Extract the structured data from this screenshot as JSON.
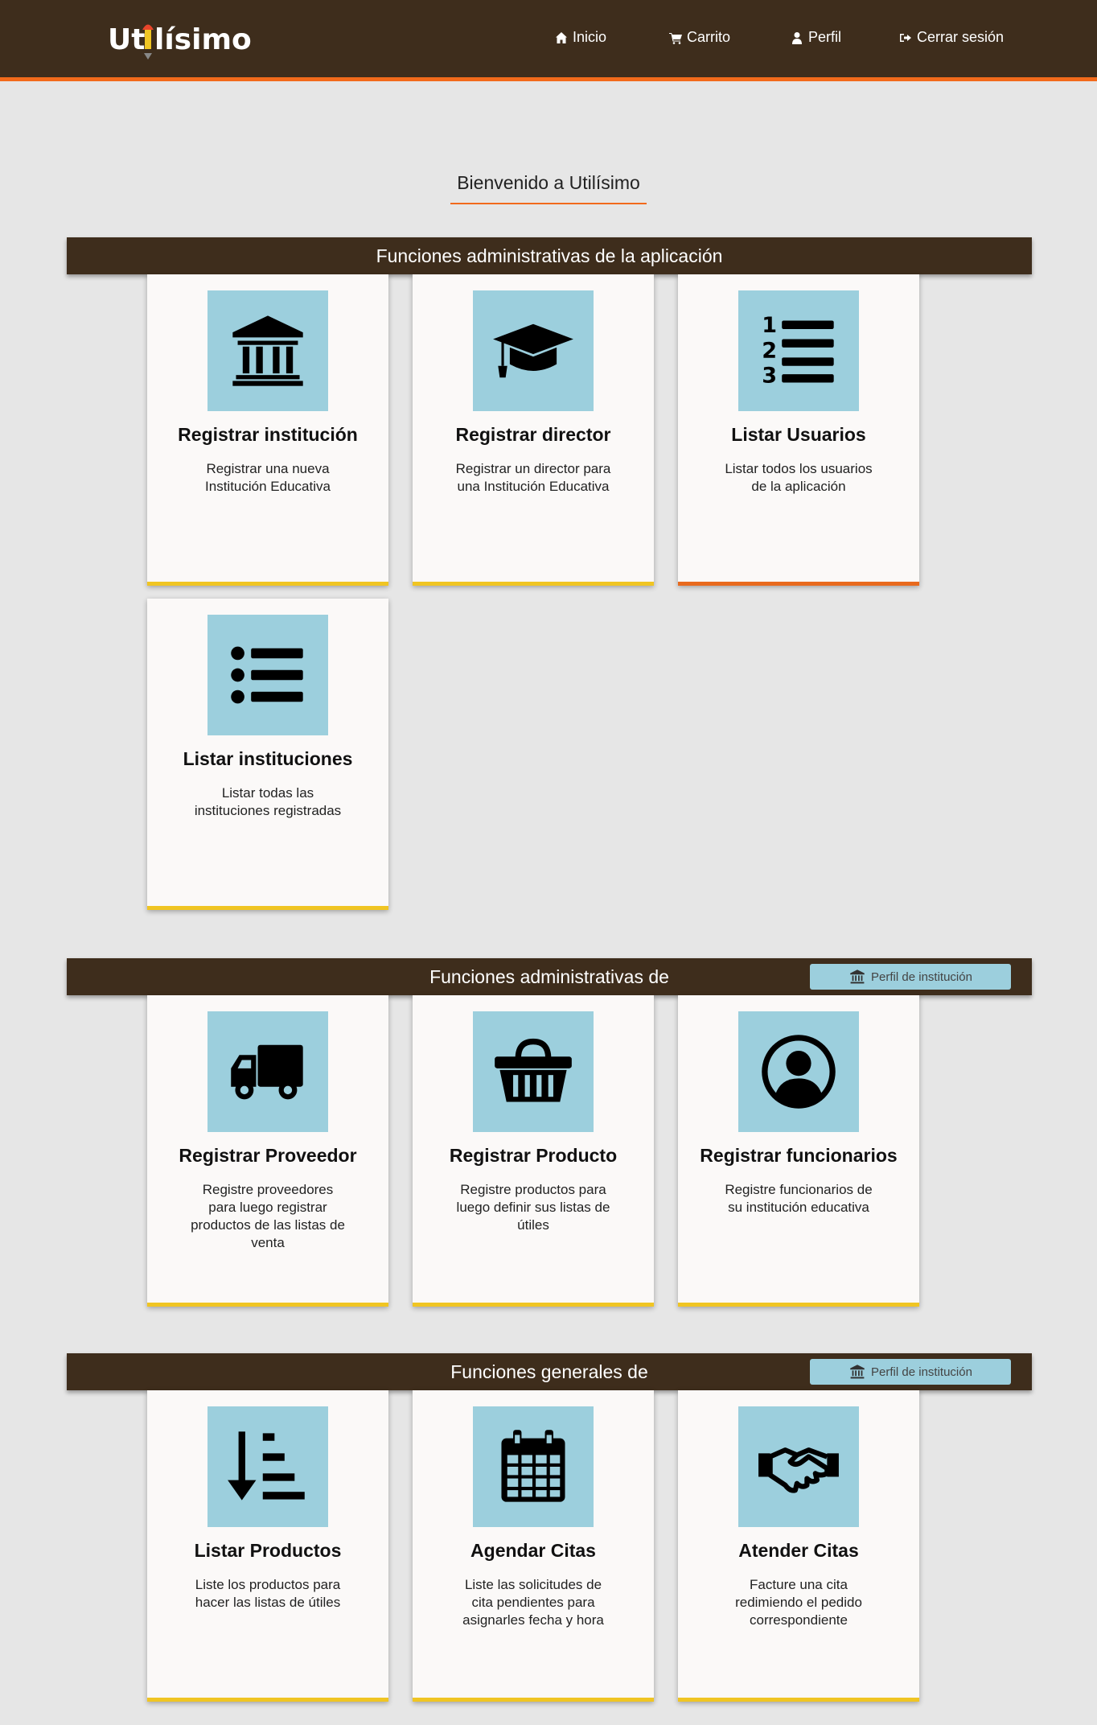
{
  "app": {
    "logo_text": "Utilísimo"
  },
  "nav": [
    {
      "label": "Inicio",
      "icon": "home-icon"
    },
    {
      "label": "Carrito",
      "icon": "cart-icon"
    },
    {
      "label": "Perfil",
      "icon": "user-icon"
    },
    {
      "label": "Cerrar sesión",
      "icon": "sign-out-icon"
    }
  ],
  "welcome": "Bienvenido a Utilísimo",
  "sections": [
    {
      "title": "Funciones administrativas de la aplicación",
      "cards": [
        {
          "title": "Registrar institución",
          "desc": "Registrar una nueva Institución Educativa",
          "icon": "institution-icon"
        },
        {
          "title": "Registrar director",
          "desc": "Registrar un director para una Institución Educativa",
          "icon": "graduation-cap-icon"
        },
        {
          "title": "Listar Usuarios",
          "desc": "Listar todos los usuarios de la aplicación",
          "icon": "ordered-list-icon"
        },
        {
          "title": "Listar instituciones",
          "desc": "Listar todas las instituciones registradas",
          "icon": "bullet-list-icon"
        }
      ]
    },
    {
      "title": "Funciones administrativas de",
      "button": "Perfil de institución",
      "cards": [
        {
          "title": "Registrar Proveedor",
          "desc": "Registre proveedores para luego registrar productos de las listas de venta",
          "icon": "truck-icon"
        },
        {
          "title": "Registrar Producto",
          "desc": "Registre productos para luego definir sus listas de útiles",
          "icon": "basket-icon"
        },
        {
          "title": "Registrar funcionarios",
          "desc": "Registre funcionarios de su institución educativa",
          "icon": "user-circle-icon"
        }
      ]
    },
    {
      "title": "Funciones generales de",
      "button": "Perfil de institución",
      "cards": [
        {
          "title": "Listar Productos",
          "desc": "Liste los productos para hacer las listas de útiles",
          "icon": "sort-list-icon"
        },
        {
          "title": "Agendar Citas",
          "desc": "Liste las solicitudes de cita pendientes para asignarles fecha y hora",
          "icon": "calendar-icon"
        },
        {
          "title": "Atender Citas",
          "desc": "Facture una cita redimiendo el pedido correspondiente",
          "icon": "handshake-icon"
        }
      ]
    }
  ],
  "colors": {
    "header": "#3e2d1c",
    "accent": "#f26a1b",
    "card_border": "#f0c523",
    "icon_bg": "#9ccfdd",
    "page_bg": "#e6e6e6"
  }
}
